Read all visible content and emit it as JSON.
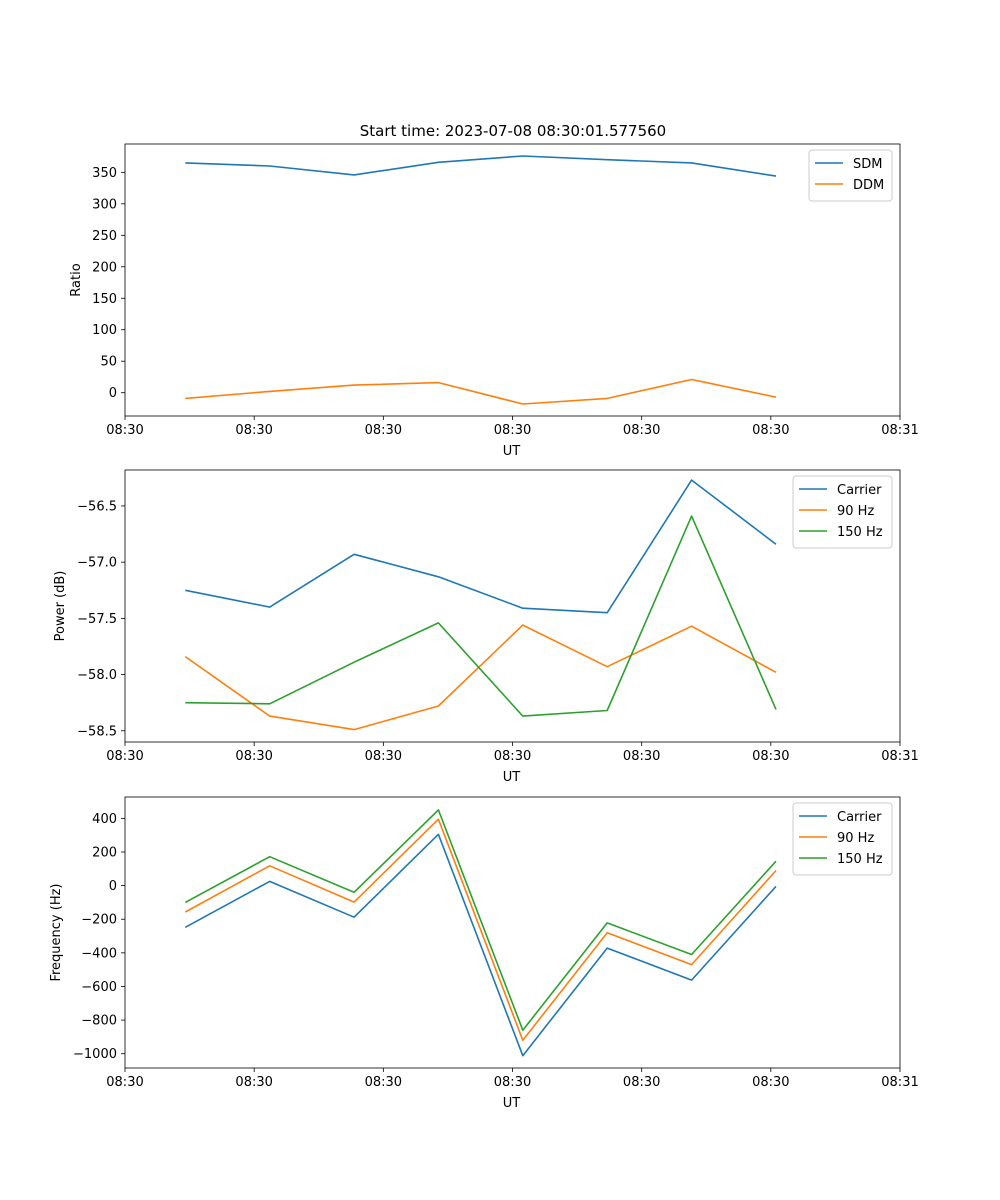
{
  "figure_title": "Start time: 2023-07-08 08:30:01.577560",
  "chart_data": [
    {
      "type": "line",
      "title": "Start time: 2023-07-08 08:30:01.577560",
      "xlabel": "UT",
      "ylabel": "Ratio",
      "xlim": [
        0,
        9
      ],
      "x_tick_positions": [
        0,
        1.5,
        3,
        4.5,
        6,
        7.5,
        9
      ],
      "x_tick_labels": [
        "08:30",
        "08:30",
        "08:30",
        "08:30",
        "08:30",
        "08:30",
        "08:31"
      ],
      "ylim": [
        -37,
        395
      ],
      "y_ticks": [
        0,
        50,
        100,
        150,
        200,
        250,
        300,
        350
      ],
      "x": [
        0.7,
        1.68,
        2.66,
        3.64,
        4.62,
        5.6,
        6.58,
        7.56
      ],
      "legend_position": "top-right",
      "series": [
        {
          "name": "SDM",
          "color": "#1f77b4",
          "values": [
            365,
            360,
            346,
            366,
            376,
            370,
            365,
            344
          ]
        },
        {
          "name": "DDM",
          "color": "#ff7f0e",
          "values": [
            -9,
            2,
            12,
            16,
            -18,
            -9,
            21,
            -7
          ]
        }
      ]
    },
    {
      "type": "line",
      "title": "",
      "xlabel": "UT",
      "ylabel": "Power (dB)",
      "xlim": [
        0,
        9
      ],
      "x_tick_positions": [
        0,
        1.5,
        3,
        4.5,
        6,
        7.5,
        9
      ],
      "x_tick_labels": [
        "08:30",
        "08:30",
        "08:30",
        "08:30",
        "08:30",
        "08:30",
        "08:31"
      ],
      "ylim": [
        -58.6,
        -56.18
      ],
      "y_ticks": [
        -58.5,
        -58.0,
        -57.5,
        -57.0,
        -56.5
      ],
      "y_tick_labels": [
        "−58.5",
        "−58.0",
        "−57.5",
        "−57.0",
        "−56.5"
      ],
      "x": [
        0.7,
        1.68,
        2.66,
        3.64,
        4.62,
        5.6,
        6.58,
        7.56
      ],
      "legend_position": "top-right",
      "series": [
        {
          "name": "Carrier",
          "color": "#1f77b4",
          "values": [
            -57.25,
            -57.4,
            -56.93,
            -57.13,
            -57.41,
            -57.45,
            -56.27,
            -56.84
          ]
        },
        {
          "name": "90 Hz",
          "color": "#ff7f0e",
          "values": [
            -57.84,
            -58.37,
            -58.49,
            -58.28,
            -57.56,
            -57.93,
            -57.57,
            -57.98
          ]
        },
        {
          "name": "150 Hz",
          "color": "#2ca02c",
          "values": [
            -58.25,
            -58.26,
            -57.89,
            -57.54,
            -58.37,
            -58.32,
            -56.59,
            -58.31
          ]
        }
      ]
    },
    {
      "type": "line",
      "title": "",
      "xlabel": "UT",
      "ylabel": "Frequency (Hz)",
      "xlim": [
        0,
        9
      ],
      "x_tick_positions": [
        0,
        1.5,
        3,
        4.5,
        6,
        7.5,
        9
      ],
      "x_tick_labels": [
        "08:30",
        "08:30",
        "08:30",
        "08:30",
        "08:30",
        "08:30",
        "08:31"
      ],
      "ylim": [
        -1085,
        527
      ],
      "y_ticks": [
        -1000,
        -800,
        -600,
        -400,
        -200,
        0,
        200,
        400
      ],
      "y_tick_labels": [
        "−1000",
        "−800",
        "−600",
        "−400",
        "−200",
        "0",
        "200",
        "400"
      ],
      "x": [
        0.7,
        1.68,
        2.66,
        3.64,
        4.62,
        5.6,
        6.58,
        7.56
      ],
      "legend_position": "top-right",
      "series": [
        {
          "name": "Carrier",
          "color": "#1f77b4",
          "values": [
            -248,
            25,
            -188,
            305,
            -1012,
            -372,
            -562,
            -5
          ]
        },
        {
          "name": "90 Hz",
          "color": "#ff7f0e",
          "values": [
            -157,
            118,
            -98,
            395,
            -920,
            -280,
            -470,
            90
          ]
        },
        {
          "name": "150 Hz",
          "color": "#2ca02c",
          "values": [
            -100,
            172,
            -40,
            450,
            -860,
            -222,
            -410,
            145
          ]
        }
      ]
    }
  ]
}
